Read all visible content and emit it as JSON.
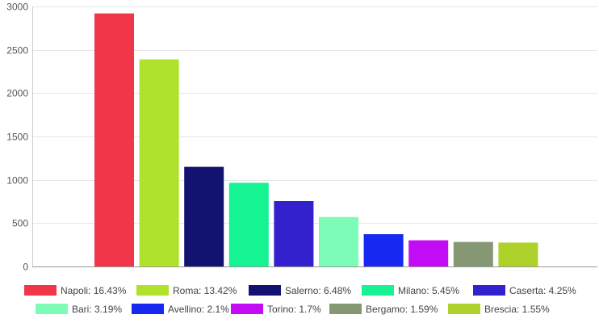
{
  "chart_data": {
    "type": "bar",
    "categories": [
      "Napoli",
      "Roma",
      "Salerno",
      "Milano",
      "Caserta",
      "Bari",
      "Avellino",
      "Torino",
      "Bergamo",
      "Brescia"
    ],
    "values": [
      2920,
      2390,
      1150,
      965,
      755,
      570,
      373,
      302,
      283,
      276
    ],
    "colors": [
      "#f2364a",
      "#afe22c",
      "#121270",
      "#16f393",
      "#3221cc",
      "#7cfcb6",
      "#1728f0",
      "#c20cf5",
      "#869873",
      "#afd12c"
    ],
    "legend": [
      "Napoli: 16.43%",
      "Roma: 13.42%",
      "Salerno: 6.48%",
      "Milano: 5.45%",
      "Caserta: 4.25%",
      "Bari: 3.19%",
      "Avellino: 2.1%",
      "Torino: 1.7%",
      "Bergamo: 1.59%",
      "Brescia: 1.55%"
    ],
    "ylim": [
      0,
      3000
    ],
    "yticks": [
      "0",
      "500",
      "1000",
      "1500",
      "2000",
      "2500",
      "3000"
    ],
    "grid": true,
    "legend_position": "bottom",
    "title": "",
    "xlabel": "",
    "ylabel": ""
  }
}
